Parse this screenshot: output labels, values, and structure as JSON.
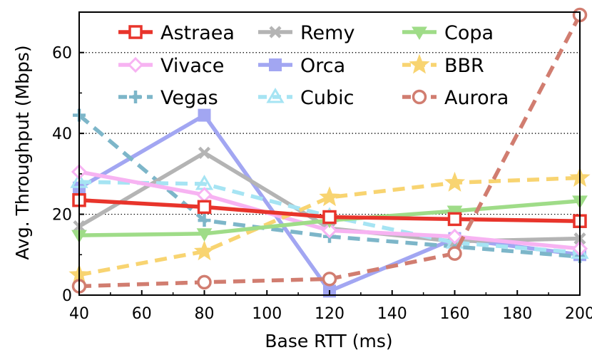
{
  "chart_data": {
    "type": "line",
    "xlabel": "Base RTT (ms)",
    "ylabel": "Avg. Throughput (Mbps)",
    "xlim": [
      40,
      200
    ],
    "ylim": [
      0,
      70
    ],
    "xticks": [
      40,
      60,
      80,
      100,
      120,
      140,
      160,
      180,
      200
    ],
    "yticks": [
      0,
      20,
      40,
      60
    ],
    "grid": "horizontal dotted at 20, 40, 60",
    "legend_position": "top, 3 columns",
    "x": [
      40,
      80,
      120,
      160,
      200
    ],
    "series": [
      {
        "name": "Astraea",
        "values": [
          23.5,
          21.8,
          19.3,
          18.8,
          18.3
        ],
        "color": "#e8342b",
        "dash": "solid",
        "marker": "square-open"
      },
      {
        "name": "Remy",
        "values": [
          17.0,
          35.2,
          16.5,
          13.3,
          14.0
        ],
        "color": "#b4b4b4",
        "dash": "solid",
        "marker": "x"
      },
      {
        "name": "Copa",
        "values": [
          14.8,
          15.2,
          18.5,
          20.8,
          23.3
        ],
        "color": "#9fdc88",
        "dash": "solid",
        "marker": "triangle-down"
      },
      {
        "name": "Vivace",
        "values": [
          30.5,
          24.8,
          16.0,
          14.5,
          11.5
        ],
        "color": "#f7b3f2",
        "dash": "solid",
        "marker": "diamond-open"
      },
      {
        "name": "Orca",
        "values": [
          26.5,
          44.5,
          1.0,
          14.0,
          10.0
        ],
        "color": "#a2a6f2",
        "dash": "solid",
        "marker": "square"
      },
      {
        "name": "BBR",
        "values": [
          5.0,
          10.8,
          24.2,
          27.8,
          29.0
        ],
        "color": "#f8d471",
        "dash": "dashed",
        "marker": "star"
      },
      {
        "name": "Vegas",
        "values": [
          44.5,
          18.5,
          14.5,
          12.0,
          9.5
        ],
        "color": "#7db6c9",
        "dash": "dashed",
        "marker": "plus"
      },
      {
        "name": "Cubic",
        "values": [
          28.0,
          27.5,
          19.5,
          13.0,
          10.5
        ],
        "color": "#a6e4f3",
        "dash": "dashed",
        "marker": "triangle-up"
      },
      {
        "name": "Aurora",
        "values": [
          2.2,
          3.2,
          4.0,
          10.3,
          69.3
        ],
        "color": "#d17d70",
        "dash": "dashed",
        "marker": "circle-open"
      }
    ]
  }
}
